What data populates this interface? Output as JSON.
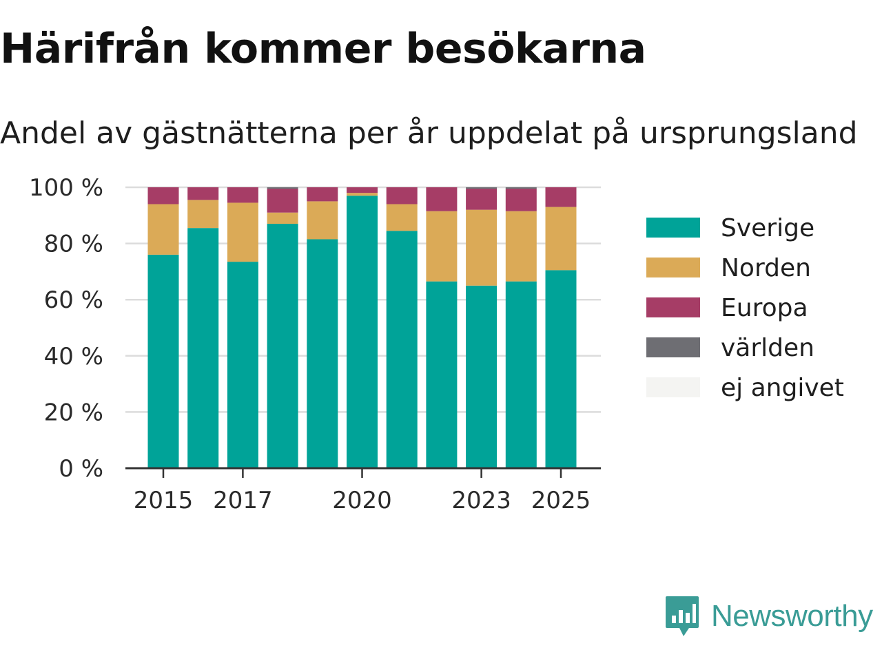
{
  "title": "Härifrån kommer besökarna",
  "subtitle": "Andel av gästnätterna per år uppdelat på ursprungsland",
  "brand": {
    "name": "Newsworthy",
    "icon": "newsworthy-logo-icon",
    "color": "#3a9c96"
  },
  "chart_data": {
    "type": "bar",
    "stacked": true,
    "categories": [
      2015,
      2016,
      2017,
      2018,
      2019,
      2020,
      2021,
      2022,
      2023,
      2024,
      2025
    ],
    "x_tick_labels": [
      "2015",
      "2017",
      "2020",
      "2023",
      "2025"
    ],
    "x_ticks_at": [
      2015,
      2017,
      2020,
      2023,
      2025
    ],
    "y_ticks": [
      0,
      20,
      40,
      60,
      80,
      100
    ],
    "y_tick_labels": [
      "0 %",
      "20 %",
      "40 %",
      "60 %",
      "80 %",
      "100 %"
    ],
    "ylim": [
      0,
      100
    ],
    "grid": true,
    "legend_position": "right",
    "series": [
      {
        "name": "Sverige",
        "color": "#00a398",
        "values": [
          76,
          85.5,
          73.5,
          87,
          81.5,
          97,
          84.5,
          66.5,
          65,
          66.5,
          70.5
        ]
      },
      {
        "name": "Norden",
        "color": "#dbaa57",
        "values": [
          18,
          10,
          21,
          4,
          13.5,
          1,
          9.5,
          25,
          27,
          25,
          22.5
        ]
      },
      {
        "name": "Europa",
        "color": "#a63d66",
        "values": [
          6,
          4.5,
          5.5,
          8.5,
          5,
          2,
          6,
          8.5,
          7.5,
          8,
          7
        ]
      },
      {
        "name": "världen",
        "color": "#6e6e73",
        "values": [
          0,
          0,
          0,
          0.5,
          0,
          0,
          0,
          0,
          0.5,
          0.5,
          0
        ]
      },
      {
        "name": "ej angivet",
        "color": "#f4f4f2",
        "values": [
          0,
          0,
          0,
          0,
          0,
          0,
          0,
          0,
          0,
          0,
          0
        ]
      }
    ]
  }
}
